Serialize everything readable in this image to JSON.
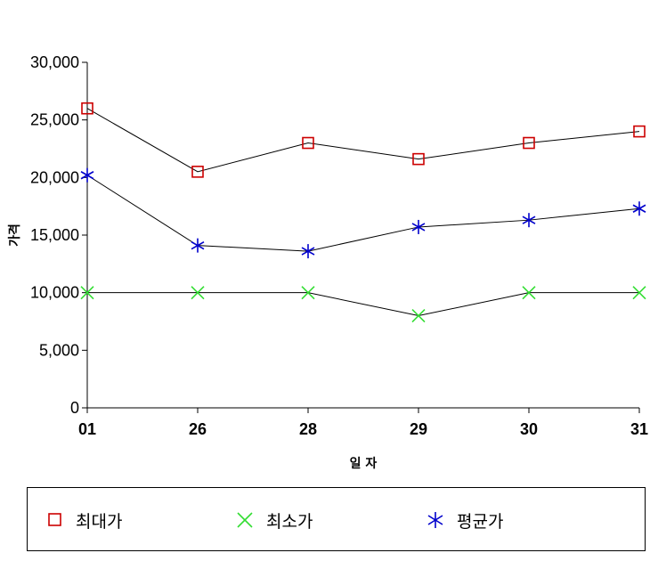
{
  "chart_data": {
    "type": "line",
    "categories": [
      "01",
      "26",
      "28",
      "29",
      "30",
      "31"
    ],
    "xlabel": "일 자",
    "ylabel": "가격",
    "ylim": [
      0,
      30000
    ],
    "yticks": [
      0,
      5000,
      10000,
      15000,
      20000,
      25000,
      30000
    ],
    "ytick_labels": [
      "0",
      "5,000",
      "10,000",
      "15,000",
      "20,000",
      "25,000",
      "30,000"
    ],
    "grid": false,
    "legend_position": "bottom",
    "series": [
      {
        "name": "최대가",
        "marker": "square",
        "color": "#cc0000",
        "values": [
          26000,
          20500,
          23000,
          21600,
          23000,
          24000
        ]
      },
      {
        "name": "최소가",
        "marker": "x",
        "color": "#33dd33",
        "values": [
          10000,
          10000,
          10000,
          8000,
          10000,
          10000
        ]
      },
      {
        "name": "평균가",
        "marker": "asterisk",
        "color": "#0000cc",
        "values": [
          20200,
          14100,
          13600,
          15700,
          16300,
          17300
        ]
      }
    ]
  }
}
